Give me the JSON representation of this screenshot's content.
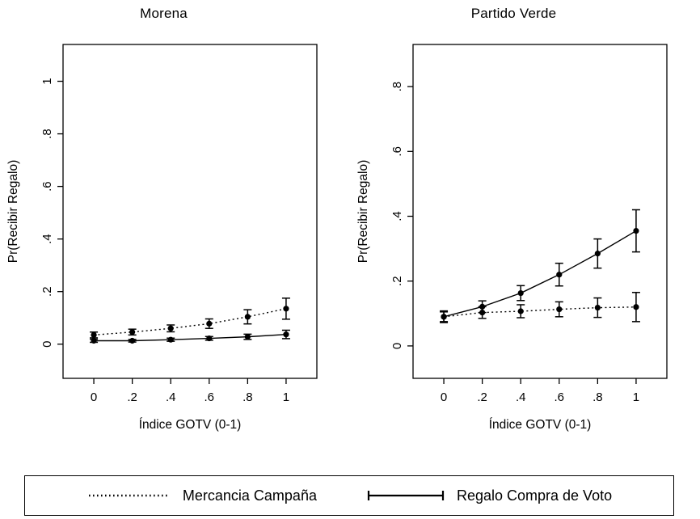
{
  "chart_data": [
    {
      "type": "line",
      "title": "Morena",
      "xlabel": "Índice GOTV (0-1)",
      "ylabel": "Pr(Recibir Regalo)",
      "x": [
        0,
        0.2,
        0.4,
        0.6,
        0.8,
        1
      ],
      "xtick_labels": [
        "0",
        ".2",
        ".4",
        ".6",
        ".8",
        "1"
      ],
      "yticks": [
        0,
        0.2,
        0.4,
        0.6,
        0.8,
        1
      ],
      "ytick_labels": [
        "0",
        ".2",
        ".4",
        ".6",
        ".8",
        "1"
      ],
      "xlim": [
        -0.16,
        1.16
      ],
      "ylim": [
        -0.13,
        1.14
      ],
      "grid": false,
      "series": [
        {
          "name": "Mercancia Campaña",
          "style": "dotted",
          "values": [
            0.035,
            0.046,
            0.06,
            0.078,
            0.104,
            0.135
          ],
          "ci_low": [
            0.024,
            0.035,
            0.047,
            0.06,
            0.077,
            0.095
          ],
          "ci_high": [
            0.046,
            0.057,
            0.073,
            0.096,
            0.131,
            0.175
          ]
        },
        {
          "name": "Regalo Compra de Voto",
          "style": "solid",
          "values": [
            0.013,
            0.013,
            0.017,
            0.022,
            0.028,
            0.037
          ],
          "ci_low": [
            0.007,
            0.008,
            0.011,
            0.015,
            0.018,
            0.021
          ],
          "ci_high": [
            0.019,
            0.018,
            0.023,
            0.029,
            0.038,
            0.053
          ]
        }
      ]
    },
    {
      "type": "line",
      "title": "Partido Verde",
      "xlabel": "Índice GOTV (0-1)",
      "ylabel": "Pr(Recibir Regalo)",
      "x": [
        0,
        0.2,
        0.4,
        0.6,
        0.8,
        1
      ],
      "xtick_labels": [
        "0",
        ".2",
        ".4",
        ".6",
        ".8",
        "1"
      ],
      "yticks": [
        0,
        0.2,
        0.4,
        0.6,
        0.8
      ],
      "ytick_labels": [
        "0",
        ".2",
        ".4",
        ".6",
        ".8"
      ],
      "xlim": [
        -0.16,
        1.16
      ],
      "ylim": [
        -0.1,
        0.93
      ],
      "grid": false,
      "series": [
        {
          "name": "Mercancia Campaña",
          "style": "dotted",
          "values": [
            0.09,
            0.103,
            0.107,
            0.113,
            0.118,
            0.12
          ],
          "ci_low": [
            0.072,
            0.085,
            0.087,
            0.09,
            0.088,
            0.075
          ],
          "ci_high": [
            0.108,
            0.121,
            0.127,
            0.136,
            0.148,
            0.165
          ]
        },
        {
          "name": "Regalo Compra de Voto",
          "style": "solid",
          "values": [
            0.09,
            0.121,
            0.163,
            0.22,
            0.285,
            0.355
          ],
          "ci_low": [
            0.075,
            0.103,
            0.14,
            0.185,
            0.24,
            0.29
          ],
          "ci_high": [
            0.105,
            0.139,
            0.186,
            0.255,
            0.33,
            0.42
          ]
        }
      ]
    }
  ],
  "legend": {
    "items": [
      {
        "label": "Mercancia Campaña",
        "style": "dotted"
      },
      {
        "label": "Regalo Compra de Voto",
        "style": "solid"
      }
    ]
  },
  "colors": {
    "foreground": "#000000",
    "background": "#ffffff"
  }
}
